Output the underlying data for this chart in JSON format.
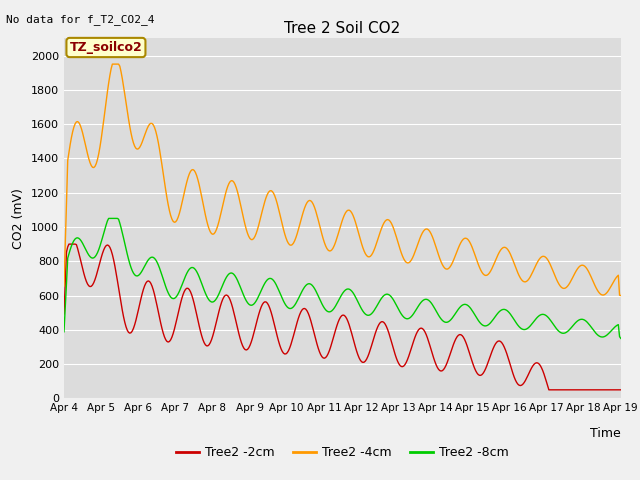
{
  "title": "Tree 2 Soil CO2",
  "subtitle": "No data for f_T2_CO2_4",
  "ylabel": "CO2 (mV)",
  "xlabel": "Time",
  "legend_label": "TZ_soilco2",
  "ylim": [
    0,
    2100
  ],
  "yticks": [
    0,
    200,
    400,
    600,
    800,
    1000,
    1200,
    1400,
    1600,
    1800,
    2000
  ],
  "xtick_labels": [
    "Apr 4",
    "Apr 5",
    "Apr 6",
    "Apr 7",
    "Apr 8",
    "Apr 9",
    "Apr 10",
    "Apr 11",
    "Apr 12",
    "Apr 13",
    "Apr 14",
    "Apr 15",
    "Apr 16",
    "Apr 17",
    "Apr 18",
    "Apr 19"
  ],
  "color_2cm": "#cc0000",
  "color_4cm": "#ff9900",
  "color_8cm": "#00cc00",
  "legend_entries": [
    "Tree2 -2cm",
    "Tree2 -4cm",
    "Tree2 -8cm"
  ],
  "bg_color": "#dcdcdc",
  "grid_color": "#ffffff",
  "fig_bg": "#f0f0f0"
}
